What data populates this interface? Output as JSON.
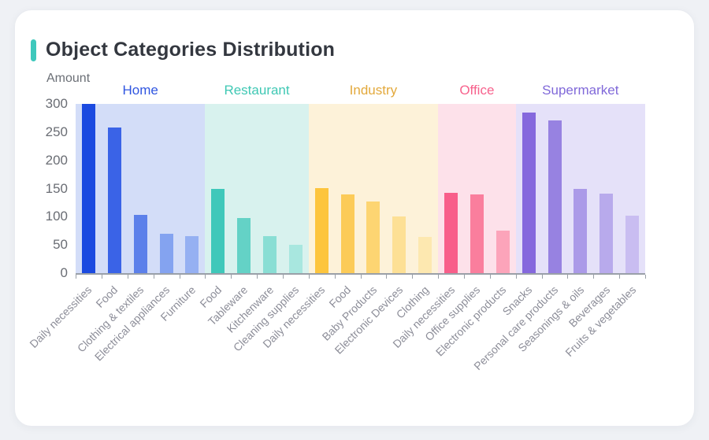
{
  "page": {
    "background": "#eff1f5",
    "card_background": "#ffffff"
  },
  "header": {
    "title": "Object Categories Distribution",
    "accent_color": "#3ec8bc"
  },
  "chart_data": {
    "type": "bar",
    "title": "Object Categories Distribution",
    "xlabel": "",
    "ylabel": "Amount",
    "ylim": [
      0,
      300
    ],
    "yticks": [
      0,
      50,
      100,
      150,
      200,
      250,
      300
    ],
    "grid": false,
    "legend_position": "none",
    "axis_color": "#9aa0a8",
    "y_tick_label_color": "#6a6d74",
    "x_tick_label_color": "#8d8e99",
    "groups": [
      {
        "name": "Home",
        "label_color": "#2f55e0",
        "band_color": "#d3ddf8",
        "bars": [
          {
            "label": "Daily necessities",
            "value": 300,
            "color": "#1b4ae0"
          },
          {
            "label": "Food",
            "value": 258,
            "color": "#3a63e7"
          },
          {
            "label": "Clothing & textiles",
            "value": 103,
            "color": "#5c80ea"
          },
          {
            "label": "Electrical appliances",
            "value": 70,
            "color": "#84a3f0"
          },
          {
            "label": "Furniture",
            "value": 65,
            "color": "#95b0f2"
          }
        ]
      },
      {
        "name": "Restaurant",
        "label_color": "#3fc8b4",
        "band_color": "#d8f2ee",
        "bars": [
          {
            "label": "Food",
            "value": 149,
            "color": "#3fc8ba"
          },
          {
            "label": "Tableware",
            "value": 97,
            "color": "#64d2c6"
          },
          {
            "label": "Kitchenware",
            "value": 65,
            "color": "#89ded4"
          },
          {
            "label": "Cleaning supplies",
            "value": 50,
            "color": "#a8e7df"
          }
        ]
      },
      {
        "name": "Industry",
        "label_color": "#e3a93c",
        "band_color": "#fdf2d9",
        "bars": [
          {
            "label": "Daily necessities",
            "value": 151,
            "color": "#fdc53d"
          },
          {
            "label": "Food",
            "value": 139,
            "color": "#fccb58"
          },
          {
            "label": "Baby Products",
            "value": 127,
            "color": "#fdd572"
          },
          {
            "label": "Electronic Devices",
            "value": 100,
            "color": "#fde095"
          },
          {
            "label": "Clothing",
            "value": 64,
            "color": "#fde8b0"
          }
        ]
      },
      {
        "name": "Office",
        "label_color": "#f7628d",
        "band_color": "#fde1ea",
        "bars": [
          {
            "label": "Daily necessities",
            "value": 143,
            "color": "#f85e8a"
          },
          {
            "label": "Office supplies",
            "value": 139,
            "color": "#fa7e9d"
          },
          {
            "label": "Electronic products",
            "value": 76,
            "color": "#fca4ba"
          }
        ]
      },
      {
        "name": "Supermarket",
        "label_color": "#8069d9",
        "band_color": "#e5e1f9",
        "bars": [
          {
            "label": "Snacks",
            "value": 285,
            "color": "#8568dd"
          },
          {
            "label": "Personal care products",
            "value": 271,
            "color": "#9782e1"
          },
          {
            "label": "Seasonings & oils",
            "value": 149,
            "color": "#ab9ae8"
          },
          {
            "label": "Beverages",
            "value": 141,
            "color": "#b8aaec"
          },
          {
            "label": "Fruits & vegetables",
            "value": 102,
            "color": "#c9bdf1"
          }
        ]
      }
    ]
  }
}
